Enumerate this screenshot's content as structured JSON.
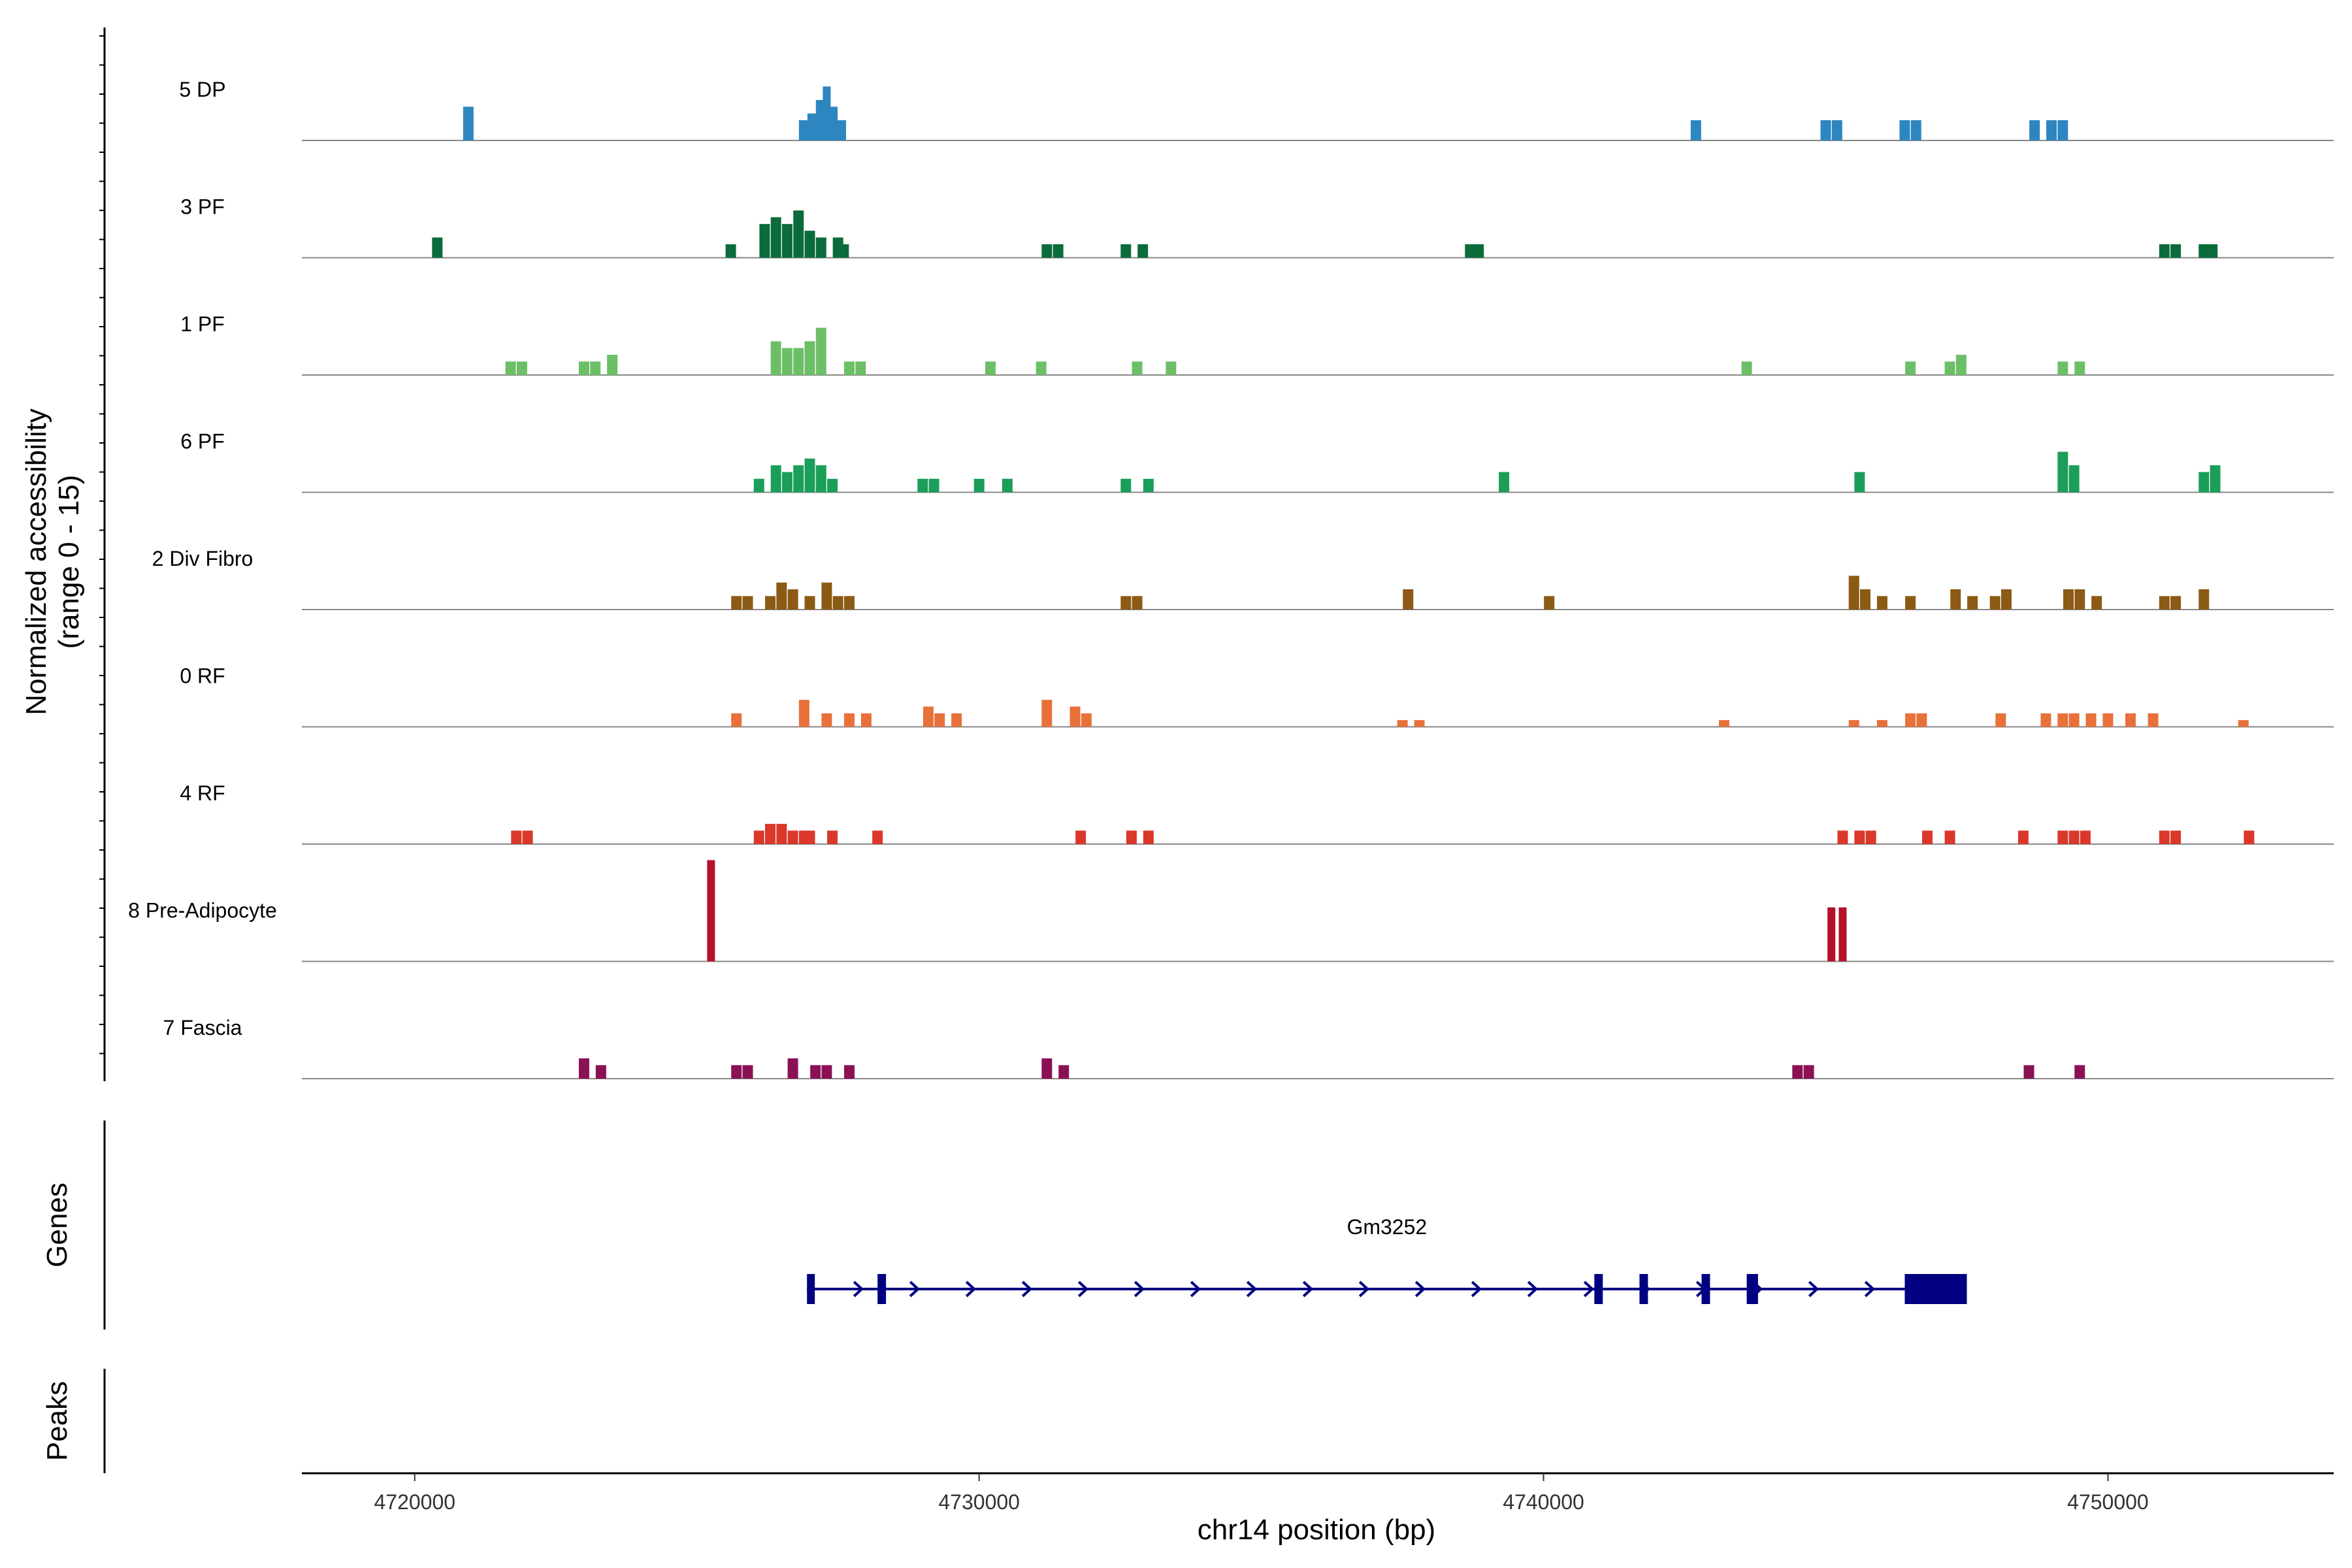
{
  "chart_data": {
    "type": "coverage",
    "y_axis_label": "Normalized accessibility",
    "y_axis_sublabel": "(range 0 - 15)",
    "y_range": [
      0,
      15
    ],
    "x_axis_label": "chr14 position (bp)",
    "x_range": [
      4718000,
      4754000
    ],
    "x_ticks": [
      4720000,
      4730000,
      4740000,
      4750000
    ],
    "x_tick_labels": [
      "4720000",
      "4730000",
      "4740000",
      "4750000"
    ],
    "tracks": [
      {
        "name": "5 DP",
        "color": "#2e86c1",
        "peaks": [
          [
            4720950,
            5
          ],
          [
            4726900,
            3
          ],
          [
            4727050,
            4
          ],
          [
            4727200,
            6
          ],
          [
            4727300,
            8
          ],
          [
            4727400,
            5
          ],
          [
            4727550,
            3
          ],
          [
            4742700,
            3
          ],
          [
            4745000,
            3
          ],
          [
            4745200,
            3
          ],
          [
            4746400,
            3
          ],
          [
            4746600,
            3
          ],
          [
            4748700,
            3
          ],
          [
            4749000,
            3
          ],
          [
            4749200,
            3
          ]
        ]
      },
      {
        "name": "3 PF",
        "color": "#0b6b3a",
        "peaks": [
          [
            4720400,
            3
          ],
          [
            4725600,
            2
          ],
          [
            4726200,
            5
          ],
          [
            4726400,
            6
          ],
          [
            4726600,
            5
          ],
          [
            4726800,
            7
          ],
          [
            4727000,
            4
          ],
          [
            4727200,
            3
          ],
          [
            4727500,
            3
          ],
          [
            4727600,
            2
          ],
          [
            4731200,
            2
          ],
          [
            4731400,
            2
          ],
          [
            4732600,
            2
          ],
          [
            4732900,
            2
          ],
          [
            4738700,
            2
          ],
          [
            4738850,
            2
          ],
          [
            4751000,
            2
          ],
          [
            4751200,
            2
          ],
          [
            4751700,
            2
          ],
          [
            4751850,
            2
          ]
        ]
      },
      {
        "name": "1 PF",
        "color": "#6dbf67",
        "peaks": [
          [
            4721700,
            2
          ],
          [
            4721900,
            2
          ],
          [
            4723000,
            2
          ],
          [
            4723200,
            2
          ],
          [
            4723500,
            3
          ],
          [
            4726400,
            5
          ],
          [
            4726600,
            4
          ],
          [
            4726800,
            4
          ],
          [
            4727000,
            5
          ],
          [
            4727200,
            7
          ],
          [
            4727700,
            2
          ],
          [
            4727900,
            2
          ],
          [
            4730200,
            2
          ],
          [
            4731100,
            2
          ],
          [
            4732800,
            2
          ],
          [
            4733400,
            2
          ],
          [
            4743600,
            2
          ],
          [
            4746500,
            2
          ],
          [
            4747200,
            2
          ],
          [
            4747400,
            3
          ],
          [
            4749200,
            2
          ],
          [
            4749500,
            2
          ]
        ]
      },
      {
        "name": "6 PF",
        "color": "#1b9e5a",
        "peaks": [
          [
            4726100,
            2
          ],
          [
            4726400,
            4
          ],
          [
            4726600,
            3
          ],
          [
            4726800,
            4
          ],
          [
            4727000,
            5
          ],
          [
            4727200,
            4
          ],
          [
            4727400,
            2
          ],
          [
            4729000,
            2
          ],
          [
            4729200,
            2
          ],
          [
            4730000,
            2
          ],
          [
            4730500,
            2
          ],
          [
            4732600,
            2
          ],
          [
            4733000,
            2
          ],
          [
            4739300,
            3
          ],
          [
            4745600,
            3
          ],
          [
            4749200,
            6
          ],
          [
            4749400,
            4
          ],
          [
            4751700,
            3
          ],
          [
            4751900,
            4
          ]
        ]
      },
      {
        "name": "2 Div Fibro",
        "color": "#8b5a14",
        "peaks": [
          [
            4725700,
            2
          ],
          [
            4725900,
            2
          ],
          [
            4726300,
            2
          ],
          [
            4726500,
            4
          ],
          [
            4726700,
            3
          ],
          [
            4727000,
            2
          ],
          [
            4727300,
            4
          ],
          [
            4727500,
            2
          ],
          [
            4727700,
            2
          ],
          [
            4732600,
            2
          ],
          [
            4732800,
            2
          ],
          [
            4737600,
            3
          ],
          [
            4740100,
            2
          ],
          [
            4745500,
            5
          ],
          [
            4745700,
            3
          ],
          [
            4746000,
            2
          ],
          [
            4746500,
            2
          ],
          [
            4747300,
            3
          ],
          [
            4747600,
            2
          ],
          [
            4748000,
            2
          ],
          [
            4748200,
            3
          ],
          [
            4749300,
            3
          ],
          [
            4749500,
            3
          ],
          [
            4749800,
            2
          ],
          [
            4751000,
            2
          ],
          [
            4751200,
            2
          ],
          [
            4751700,
            3
          ]
        ]
      },
      {
        "name": "0 RF",
        "color": "#e8713a",
        "peaks": [
          [
            4725700,
            2
          ],
          [
            4726900,
            4
          ],
          [
            4727300,
            2
          ],
          [
            4727700,
            2
          ],
          [
            4728000,
            2
          ],
          [
            4729100,
            3
          ],
          [
            4729300,
            2
          ],
          [
            4729600,
            2
          ],
          [
            4731200,
            4
          ],
          [
            4731700,
            3
          ],
          [
            4731900,
            2
          ],
          [
            4737500,
            1
          ],
          [
            4737800,
            1
          ],
          [
            4743200,
            1
          ],
          [
            4745500,
            1
          ],
          [
            4746000,
            1
          ],
          [
            4746500,
            2
          ],
          [
            4746700,
            2
          ],
          [
            4748100,
            2
          ],
          [
            4748900,
            2
          ],
          [
            4749200,
            2
          ],
          [
            4749400,
            2
          ],
          [
            4749700,
            2
          ],
          [
            4750000,
            2
          ],
          [
            4750400,
            2
          ],
          [
            4750800,
            2
          ],
          [
            4752400,
            1
          ]
        ]
      },
      {
        "name": "4 RF",
        "color": "#d9382b",
        "peaks": [
          [
            4721800,
            2
          ],
          [
            4722000,
            2
          ],
          [
            4726100,
            2
          ],
          [
            4726300,
            3
          ],
          [
            4726500,
            3
          ],
          [
            4726700,
            2
          ],
          [
            4726900,
            2
          ],
          [
            4727000,
            2
          ],
          [
            4727400,
            2
          ],
          [
            4728200,
            2
          ],
          [
            4731800,
            2
          ],
          [
            4732700,
            2
          ],
          [
            4733000,
            2
          ],
          [
            4745300,
            2
          ],
          [
            4745600,
            2
          ],
          [
            4745800,
            2
          ],
          [
            4746800,
            2
          ],
          [
            4747200,
            2
          ],
          [
            4748500,
            2
          ],
          [
            4749200,
            2
          ],
          [
            4749400,
            2
          ],
          [
            4749600,
            2
          ],
          [
            4751000,
            2
          ],
          [
            4751200,
            2
          ],
          [
            4752500,
            2
          ]
        ]
      },
      {
        "name": "8 Pre-Adipocyte",
        "color": "#b5112b",
        "peaks": [
          [
            4725250,
            15
          ],
          [
            4745100,
            8
          ],
          [
            4745300,
            8
          ]
        ]
      },
      {
        "name": "7 Fascia",
        "color": "#8b1155",
        "peaks": [
          [
            4723000,
            3
          ],
          [
            4723300,
            2
          ],
          [
            4725700,
            2
          ],
          [
            4725900,
            2
          ],
          [
            4726700,
            3
          ],
          [
            4727100,
            2
          ],
          [
            4727300,
            2
          ],
          [
            4727700,
            2
          ],
          [
            4731200,
            3
          ],
          [
            4731500,
            2
          ],
          [
            4744500,
            2
          ],
          [
            4744700,
            2
          ],
          [
            4748600,
            2
          ],
          [
            4749500,
            2
          ]
        ]
      }
    ],
    "genes_track_label": "Genes",
    "peaks_track_label": "Peaks",
    "gene": {
      "name": "Gm3252",
      "color": "#000080",
      "strand": "+",
      "start": 4726950,
      "end": 4747500,
      "exons": [
        [
          4726950,
          4727050
        ],
        [
          4728200,
          4728350
        ],
        [
          4740900,
          4741050
        ],
        [
          4741700,
          4741850
        ],
        [
          4742800,
          4742950
        ],
        [
          4743600,
          4743800
        ],
        [
          4746400,
          4747500
        ]
      ]
    }
  }
}
